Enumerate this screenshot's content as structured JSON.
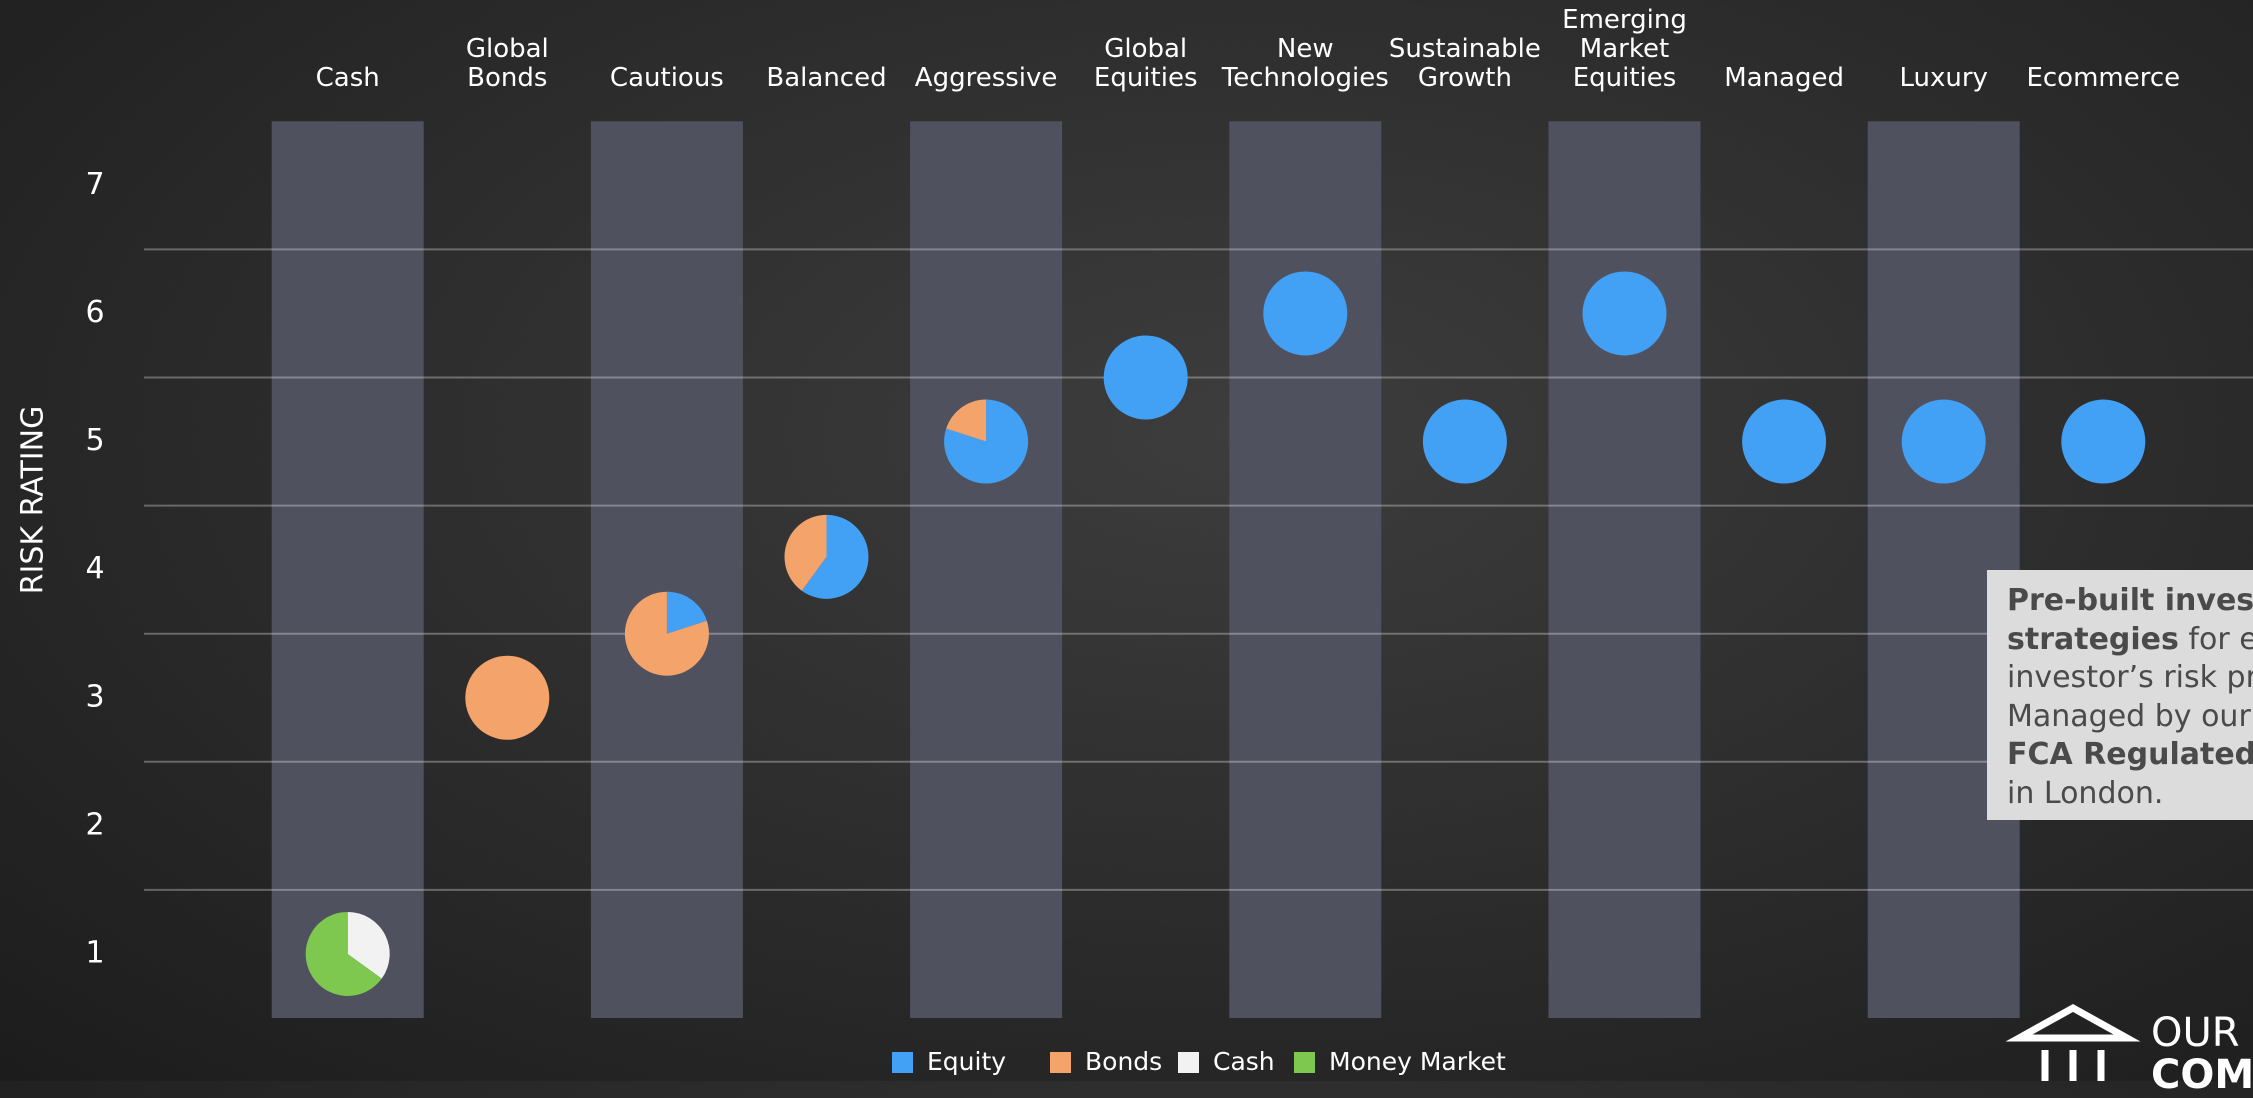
{
  "chart_data": {
    "type": "pie-scatter",
    "y_label": "RISK RATING",
    "categories": [
      "Cash",
      "Global Bonds",
      "Cautious",
      "Balanced",
      "Aggressive",
      "Global Equities",
      "New Technologies",
      "Sustainable Growth",
      "Emerging Market Equities",
      "Managed",
      "Luxury",
      "Ecommerce"
    ],
    "values": [
      1,
      3,
      3.5,
      4.1,
      5,
      5.5,
      6,
      5,
      6,
      5,
      5,
      5
    ],
    "series": [
      {
        "name": "Equity",
        "color": "#42a0f5",
        "values": [
          0,
          0,
          20,
          60,
          80,
          100,
          100,
          100,
          100,
          100,
          100,
          100
        ]
      },
      {
        "name": "Bonds",
        "color": "#f4a46a",
        "values": [
          0,
          100,
          80,
          40,
          20,
          0,
          0,
          0,
          0,
          0,
          0,
          0
        ]
      },
      {
        "name": "Cash",
        "color": "#f2f2f2",
        "values": [
          35,
          0,
          0,
          0,
          0,
          0,
          0,
          0,
          0,
          0,
          0,
          0
        ]
      },
      {
        "name": "Money Market",
        "color": "#7ec850",
        "values": [
          65,
          0,
          0,
          0,
          0,
          0,
          0,
          0,
          0,
          0,
          0,
          0
        ]
      }
    ],
    "ylim": [
      0.5,
      7.5
    ],
    "yticks": [
      1,
      2,
      3,
      4,
      5,
      6,
      7
    ],
    "grid": true,
    "column_color": "#50515e"
  },
  "text_box": {
    "lines": [
      [
        {
          "text": "Pre-built invest",
          "bold": true
        }
      ],
      [
        {
          "text": "strategies",
          "bold": true
        },
        {
          "text": " for ea",
          "bold": false
        }
      ],
      [
        {
          "text": "investor’s risk pr",
          "bold": false
        }
      ],
      [
        {
          "text": "Managed by our",
          "bold": false
        }
      ],
      [
        {
          "text": "FCA Regulated",
          "bold": true
        },
        {
          "text": " t",
          "bold": false
        }
      ],
      [
        {
          "text": "in London.",
          "bold": false
        }
      ]
    ]
  },
  "logo": {
    "line1": "OUR",
    "line2": "COM"
  }
}
